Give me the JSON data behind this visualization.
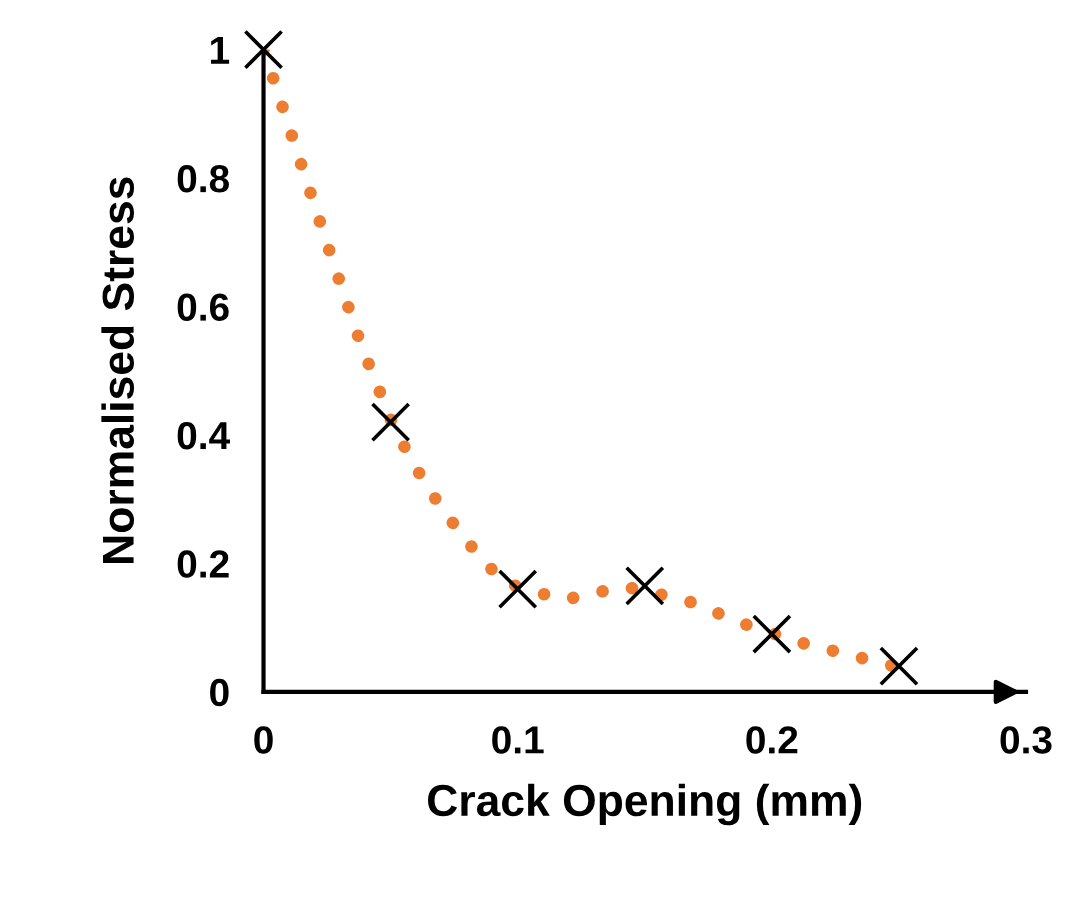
{
  "chart_data": {
    "type": "line",
    "xlabel": "Crack Opening (mm)",
    "ylabel": "Normalised Stress",
    "xlim": [
      0,
      0.3
    ],
    "ylim": [
      0,
      1
    ],
    "xticks": [
      0,
      0.1,
      0.2,
      0.3
    ],
    "yticks": [
      0,
      0.2,
      0.4,
      0.6,
      0.8,
      1
    ],
    "grid": false,
    "legend": false,
    "series": [
      {
        "color": "#ed7d31",
        "line_style": "dotted",
        "marker": "none",
        "x": [
          0,
          0.004,
          0.0155,
          0.0268,
          0.0386,
          0.0517,
          0.0643,
          0.0785,
          0.0942,
          0.118,
          0.142,
          0.166,
          0.189,
          0.212,
          0.236,
          0.248
        ],
        "values": [
          1,
          0.953,
          0.813,
          0.676,
          0.538,
          0.408,
          0.319,
          0.241,
          0.171,
          0.143,
          0.164,
          0.143,
          0.106,
          0.076,
          0.052,
          0.04
        ]
      },
      {
        "type": "scatter",
        "color": "#000000",
        "marker": "cross",
        "x": [
          0,
          0.05,
          0.1,
          0.15,
          0.2,
          0.25
        ],
        "values": [
          1,
          0.42,
          0.16,
          0.165,
          0.09,
          0.04
        ]
      }
    ]
  }
}
